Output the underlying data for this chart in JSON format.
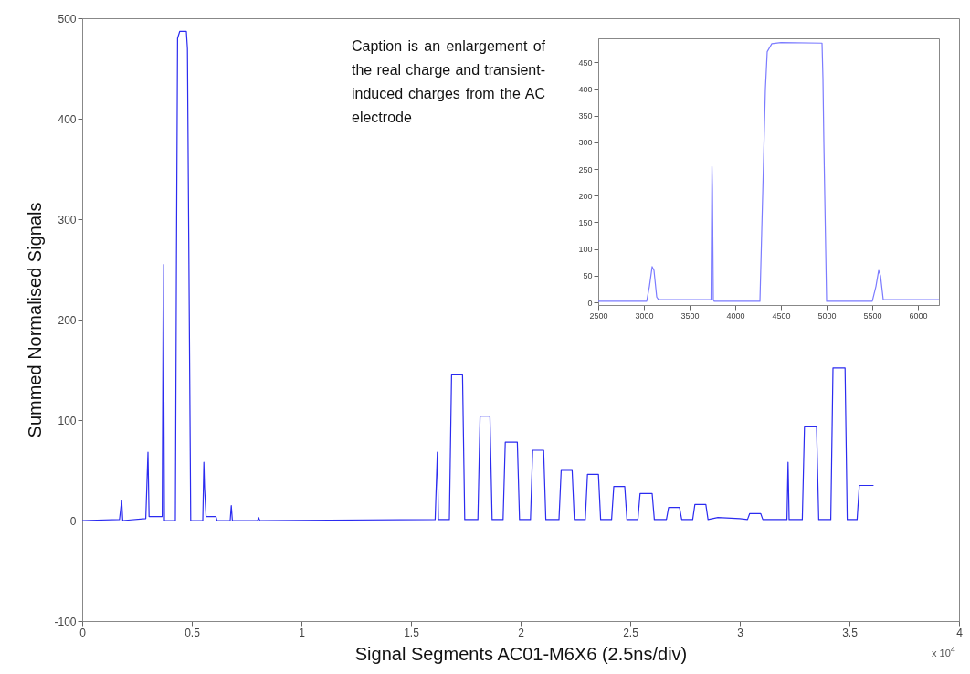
{
  "chart_data": [
    {
      "type": "line",
      "xlabel": "Signal Segments AC01-M6X6 (2.5ns/div)",
      "ylabel": "Summed Normalised Signals",
      "annotations": [
        "Caption is an enlargement of the real charge and transient-induced charges from the AC electrode",
        "x 10$^{4}$"
      ],
      "xlim": [
        0,
        4
      ],
      "xticks": [
        0,
        0.5,
        1,
        1.5,
        2,
        2.5,
        3,
        3.5,
        4
      ],
      "ylim": [
        -100,
        500
      ],
      "yticks": [
        -100,
        0,
        100,
        200,
        300,
        400,
        500
      ],
      "x": [
        0,
        0.17,
        0.18,
        0.185,
        0.29,
        0.3,
        0.305,
        0.365,
        0.37,
        0.375,
        0.425,
        0.43,
        0.435,
        0.445,
        0.475,
        0.48,
        0.495,
        0.55,
        0.555,
        0.558,
        0.565,
        0.61,
        0.615,
        0.675,
        0.68,
        0.685,
        0.8,
        0.805,
        0.81,
        1.61,
        1.62,
        1.625,
        1.675,
        1.685,
        1.735,
        1.745,
        1.805,
        1.815,
        1.86,
        1.87,
        1.92,
        1.93,
        1.985,
        1.995,
        2.045,
        2.055,
        2.105,
        2.115,
        2.175,
        2.185,
        2.235,
        2.245,
        2.295,
        2.305,
        2.355,
        2.365,
        2.415,
        2.425,
        2.475,
        2.485,
        2.535,
        2.545,
        2.6,
        2.61,
        2.665,
        2.675,
        2.725,
        2.735,
        2.785,
        2.795,
        2.845,
        2.855,
        2.9,
        3.0,
        3.035,
        3.045,
        3.095,
        3.105,
        3.215,
        3.22,
        3.225,
        3.285,
        3.295,
        3.35,
        3.36,
        3.415,
        3.425,
        3.48,
        3.49,
        3.535,
        3.545,
        3.61
      ],
      "series": [
        {
          "color": "#2b2bf0",
          "values": [
            0,
            1,
            20,
            0,
            2,
            68,
            4,
            4,
            255,
            0,
            0,
            265,
            480,
            487,
            487,
            470,
            0,
            0,
            58,
            33,
            4,
            4,
            0,
            0,
            15,
            0,
            0,
            3,
            0,
            1,
            68,
            1,
            1,
            145,
            145,
            1,
            1,
            104,
            104,
            1,
            1,
            78,
            78,
            1,
            1,
            70,
            70,
            1,
            1,
            50,
            50,
            1,
            1,
            46,
            46,
            1,
            1,
            34,
            34,
            1,
            1,
            27,
            27,
            1,
            1,
            13,
            13,
            1,
            1,
            16,
            16,
            1,
            3,
            2,
            1,
            7,
            7,
            1,
            1,
            58,
            1,
            1,
            94,
            94,
            1,
            1,
            152,
            152,
            1,
            1,
            35,
            35
          ]
        }
      ]
    },
    {
      "type": "line",
      "xlim": [
        2500,
        6230
      ],
      "xticks": [
        2500,
        3000,
        3500,
        4000,
        4500,
        5000,
        5500,
        6000
      ],
      "ylim": [
        -5,
        495
      ],
      "yticks": [
        0,
        50,
        100,
        150,
        200,
        250,
        300,
        350,
        400,
        450
      ],
      "x": [
        2500,
        3030,
        3060,
        3090,
        3110,
        3140,
        3160,
        3735,
        3745,
        3750,
        3760,
        3770,
        4270,
        4300,
        4330,
        4350,
        4400,
        4500,
        4950,
        4960,
        4970,
        4990,
        5000,
        5500,
        5540,
        5570,
        5590,
        5620,
        6230
      ],
      "series": [
        {
          "color": "#7b7bff",
          "values": [
            2,
            2,
            30,
            67,
            60,
            10,
            5,
            5,
            255,
            215,
            5,
            2,
            2,
            200,
            400,
            470,
            485,
            487,
            486,
            420,
            300,
            100,
            2,
            2,
            30,
            60,
            50,
            5,
            5
          ]
        }
      ]
    }
  ]
}
